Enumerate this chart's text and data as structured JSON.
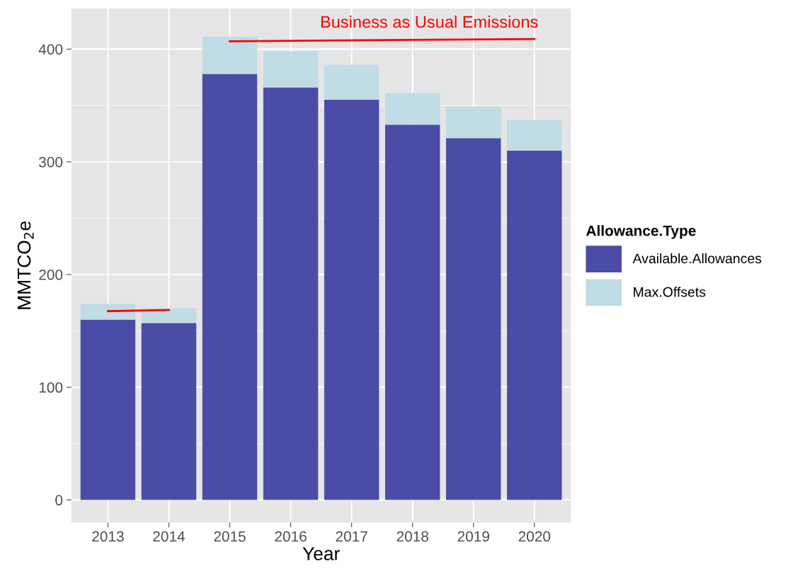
{
  "chart_data": {
    "type": "bar",
    "stacked": true,
    "xlabel": "Year",
    "ylabel": "MMTCO$_{2}$e",
    "legend_title": "Allowance.Type",
    "legend": "right",
    "grid": true,
    "categories": [
      "2013",
      "2014",
      "2015",
      "2016",
      "2017",
      "2018",
      "2019",
      "2020"
    ],
    "series": [
      {
        "name": "Available.Allowances",
        "color": "#4b4ca8",
        "values": [
          160,
          157,
          378,
          366,
          355,
          333,
          321,
          310
        ]
      },
      {
        "name": "Max.Offsets",
        "color": "#c0dce4",
        "values": [
          14,
          13,
          33,
          32,
          31,
          28,
          28,
          27
        ]
      },
      {
        "type": "line",
        "color": "#ff0000",
        "values": [
          167.5,
          168.5,
          null,
          null,
          null,
          null,
          null,
          null
        ]
      },
      {
        "type": "line",
        "color": "#ff0000",
        "values": [
          null,
          null,
          407,
          null,
          null,
          null,
          null,
          409
        ]
      }
    ],
    "annotations": [
      {
        "text": "Business as Usual Emissions",
        "x": "2020",
        "y": 409
      }
    ],
    "ylim": [
      -20,
      436
    ],
    "yticks": [
      0,
      100,
      200,
      300,
      400
    ]
  }
}
